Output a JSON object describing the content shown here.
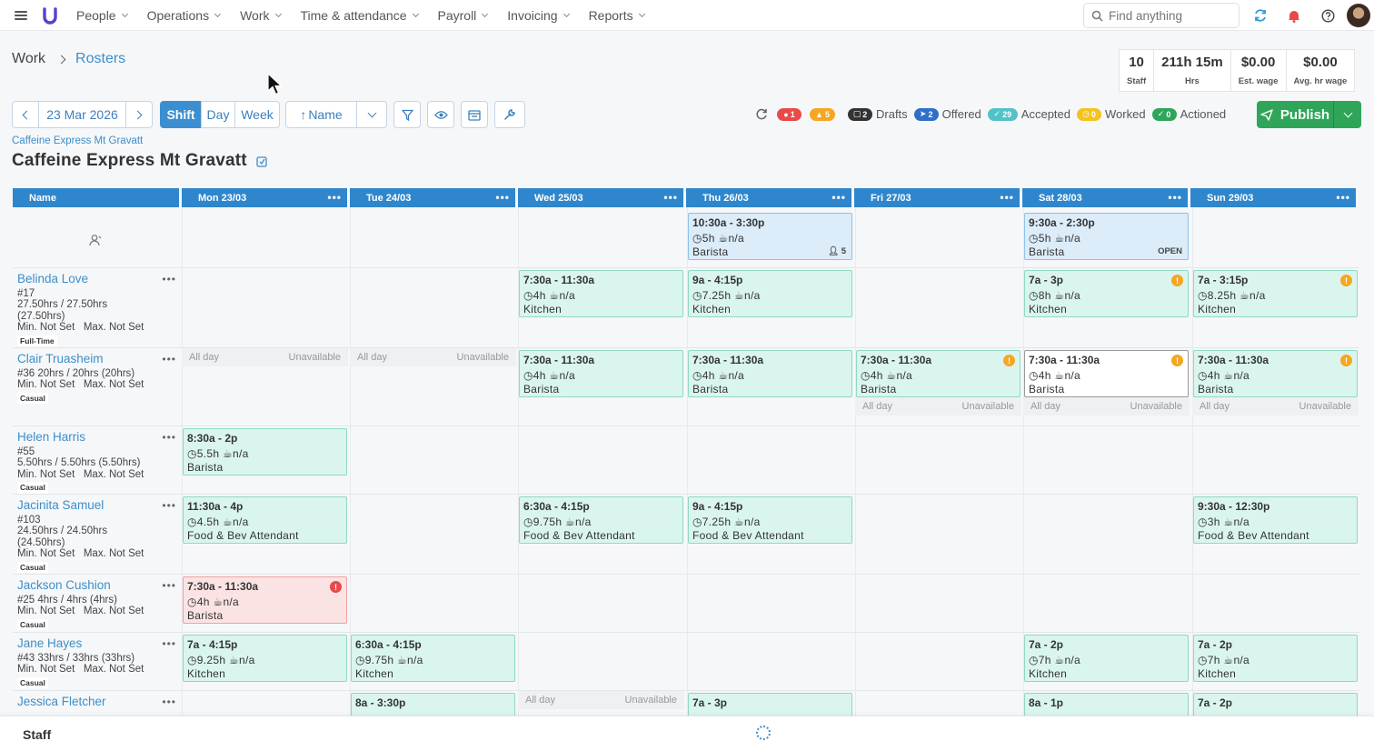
{
  "nav": {
    "items": [
      "People",
      "Operations",
      "Work",
      "Time & attendance",
      "Payroll",
      "Invoicing",
      "Reports"
    ],
    "search_placeholder": "Find anything"
  },
  "breadcrumb": {
    "parent": "Work",
    "current": "Rosters"
  },
  "stats": [
    {
      "value": "10",
      "label": "Staff"
    },
    {
      "value": "211h 15m",
      "label": "Hrs"
    },
    {
      "value": "$0.00",
      "label": "Est. wage"
    },
    {
      "value": "$0.00",
      "label": "Avg. hr wage"
    }
  ],
  "toolbar": {
    "date": "23 Mar 2026",
    "view_modes": [
      "Shift",
      "Day",
      "Week"
    ],
    "active_view": "Shift",
    "sort_label": "Name"
  },
  "status": {
    "errors": "1",
    "warnings": "5",
    "drafts_count": "2",
    "drafts_label": "Drafts",
    "offered_count": "2",
    "offered_label": "Offered",
    "accepted_count": "29",
    "accepted_label": "Accepted",
    "worked_count": "0",
    "worked_label": "Worked",
    "actioned_count": "0",
    "actioned_label": "Actioned"
  },
  "publish_label": "Publish",
  "location": {
    "small": "Caffeine Express Mt Gravatt",
    "title": "Caffeine Express Mt Gravatt"
  },
  "grid": {
    "name_header": "Name",
    "days": [
      "Mon 23/03",
      "Tue 24/03",
      "Wed 25/03",
      "Thu 26/03",
      "Fri 27/03",
      "Sat 28/03",
      "Sun 29/03"
    ]
  },
  "unavail": {
    "left": "All day",
    "right": "Unavailable"
  },
  "rows": [
    {
      "type": "open",
      "shifts": [
        {
          "day": 3,
          "time": "10:30a - 3:30p",
          "hours": "5h",
          "na": "n/a",
          "role": "Barista",
          "variant": "open",
          "badge": "5"
        },
        {
          "day": 5,
          "time": "9:30a - 2:30p",
          "hours": "5h",
          "na": "n/a",
          "role": "Barista",
          "variant": "open",
          "badge": "OPEN"
        }
      ]
    },
    {
      "name": "Belinda Love",
      "lines": [
        "#17",
        "27.50hrs / 27.50hrs",
        "(27.50hrs)",
        "Min. Not Set   Max. Not Set"
      ],
      "tag": "Full-Time",
      "unavail": [],
      "shifts": [
        {
          "day": 2,
          "time": "7:30a - 11:30a",
          "hours": "4h",
          "na": "n/a",
          "role": "Kitchen"
        },
        {
          "day": 3,
          "time": "9a - 4:15p",
          "hours": "7.25h",
          "na": "n/a",
          "role": "Kitchen"
        },
        {
          "day": 5,
          "time": "7a - 3p",
          "hours": "8h",
          "na": "n/a",
          "role": "Kitchen",
          "warn": "!"
        },
        {
          "day": 6,
          "time": "7a - 3:15p",
          "hours": "8.25h",
          "na": "n/a",
          "role": "Kitchen",
          "warn": "!"
        }
      ]
    },
    {
      "name": "Clair Truasheim",
      "lines": [
        "#36 20hrs / 20hrs (20hrs)",
        "Min. Not Set   Max. Not Set"
      ],
      "tag": "Casual",
      "unavail": [
        {
          "day": 0,
          "pos": "top"
        },
        {
          "day": 1,
          "pos": "top"
        },
        {
          "day": 4,
          "pos": "bottom"
        },
        {
          "day": 5,
          "pos": "bottom"
        },
        {
          "day": 6,
          "pos": "bottom"
        }
      ],
      "shifts": [
        {
          "day": 2,
          "time": "7:30a - 11:30a",
          "hours": "4h",
          "na": "n/a",
          "role": "Barista"
        },
        {
          "day": 3,
          "time": "7:30a - 11:30a",
          "hours": "4h",
          "na": "n/a",
          "role": "Barista"
        },
        {
          "day": 4,
          "time": "7:30a - 11:30a",
          "hours": "4h",
          "na": "n/a",
          "role": "Barista",
          "warn": "!"
        },
        {
          "day": 5,
          "time": "7:30a - 11:30a",
          "hours": "4h",
          "na": "n/a",
          "role": "Barista",
          "warn": "!",
          "variant": "white"
        },
        {
          "day": 6,
          "time": "7:30a - 11:30a",
          "hours": "4h",
          "na": "n/a",
          "role": "Barista",
          "warn": "!"
        }
      ]
    },
    {
      "name": "Helen Harris",
      "lines": [
        "#55",
        "5.50hrs / 5.50hrs (5.50hrs)",
        "Min. Not Set   Max. Not Set"
      ],
      "tag": "Casual",
      "unavail": [],
      "shifts": [
        {
          "day": 0,
          "time": "8:30a - 2p",
          "hours": "5.5h",
          "na": "n/a",
          "role": "Barista"
        }
      ]
    },
    {
      "name": "Jacinita Samuel",
      "lines": [
        "#103",
        "24.50hrs / 24.50hrs",
        "(24.50hrs)",
        "Min. Not Set   Max. Not Set"
      ],
      "tag": "Casual",
      "unavail": [],
      "shifts": [
        {
          "day": 0,
          "time": "11:30a - 4p",
          "hours": "4.5h",
          "na": "n/a",
          "role": "Food & Bev Attendant"
        },
        {
          "day": 2,
          "time": "6:30a - 4:15p",
          "hours": "9.75h",
          "na": "n/a",
          "role": "Food & Bev Attendant"
        },
        {
          "day": 3,
          "time": "9a - 4:15p",
          "hours": "7.25h",
          "na": "n/a",
          "role": "Food & Bev Attendant"
        },
        {
          "day": 6,
          "time": "9:30a - 12:30p",
          "hours": "3h",
          "na": "n/a",
          "role": "Food & Bev Attendant"
        }
      ]
    },
    {
      "name": "Jackson Cushion",
      "lines": [
        "#25 4hrs / 4hrs (4hrs)",
        "Min. Not Set   Max. Not Set"
      ],
      "tag": "Casual",
      "unavail": [],
      "shifts": [
        {
          "day": 0,
          "time": "7:30a - 11:30a",
          "hours": "4h",
          "na": "n/a",
          "role": "Barista",
          "variant": "red",
          "warn": "!",
          "warnRed": true
        }
      ]
    },
    {
      "name": "Jane Hayes",
      "lines": [
        "#43 33hrs / 33hrs (33hrs)",
        "Min. Not Set   Max. Not Set"
      ],
      "tag": "Casual",
      "unavail": [],
      "shifts": [
        {
          "day": 0,
          "time": "7a - 4:15p",
          "hours": "9.25h",
          "na": "n/a",
          "role": "Kitchen"
        },
        {
          "day": 1,
          "time": "6:30a - 4:15p",
          "hours": "9.75h",
          "na": "n/a",
          "role": "Kitchen"
        },
        {
          "day": 5,
          "time": "7a - 2p",
          "hours": "7h",
          "na": "n/a",
          "role": "Kitchen"
        },
        {
          "day": 6,
          "time": "7a - 2p",
          "hours": "7h",
          "na": "n/a",
          "role": "Kitchen"
        }
      ]
    },
    {
      "name": "Jessica Fletcher",
      "lines": [],
      "tag": "",
      "unavail": [
        {
          "day": 2,
          "pos": "top"
        }
      ],
      "shifts": [
        {
          "day": 1,
          "time": "8a - 3:30p",
          "hours": "",
          "na": "",
          "role": ""
        },
        {
          "day": 3,
          "time": "7a - 3p",
          "hours": "",
          "na": "",
          "role": ""
        },
        {
          "day": 5,
          "time": "8a - 1p",
          "hours": "",
          "na": "",
          "role": ""
        },
        {
          "day": 6,
          "time": "7a - 2p",
          "hours": "",
          "na": "",
          "role": ""
        }
      ]
    }
  ],
  "footer_label": "Staff"
}
